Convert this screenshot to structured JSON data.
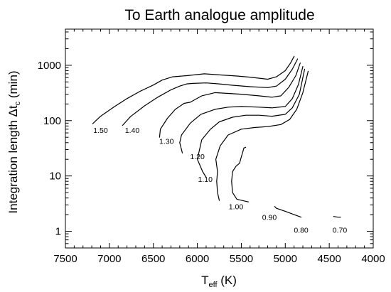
{
  "chart_data": {
    "type": "line",
    "title": "To Earth analogue amplitude",
    "xlabel": "T",
    "xlabel_sub": "eff",
    "xlabel_unit": "(K)",
    "ylabel": "Integration length Δt",
    "ylabel_sub": "c",
    "ylabel_unit": "(min)",
    "x_reversed": true,
    "xlim": [
      7500,
      4000
    ],
    "y_log": true,
    "ylim": [
      0.5,
      4500
    ],
    "x_ticks": [
      7500,
      7000,
      6500,
      6000,
      5500,
      5000,
      4500,
      4000
    ],
    "x_tick_labels": [
      "7500",
      "7000",
      "6500",
      "6000",
      "5500",
      "5000",
      "4500",
      "4000"
    ],
    "y_ticks": [
      1,
      10,
      100,
      1000
    ],
    "y_tick_labels": [
      "1",
      "10",
      "100",
      "1000"
    ],
    "grid": false,
    "legend": "none",
    "series": [
      {
        "label": "1.50",
        "label_at": [
          7100,
          60
        ],
        "points": [
          [
            7190,
            88
          ],
          [
            7100,
            120
          ],
          [
            6950,
            175
          ],
          [
            6800,
            250
          ],
          [
            6650,
            340
          ],
          [
            6500,
            440
          ],
          [
            6400,
            540
          ],
          [
            6280,
            620
          ],
          [
            6120,
            650
          ],
          [
            5920,
            700
          ],
          [
            5750,
            670
          ],
          [
            5550,
            640
          ],
          [
            5400,
            610
          ],
          [
            5200,
            560
          ],
          [
            5100,
            620
          ],
          [
            5000,
            800
          ],
          [
            4940,
            1100
          ],
          [
            4900,
            1450
          ]
        ]
      },
      {
        "label": "1.40",
        "label_at": [
          6740,
          60
        ],
        "points": [
          [
            6850,
            82
          ],
          [
            6760,
            118
          ],
          [
            6600,
            185
          ],
          [
            6450,
            265
          ],
          [
            6300,
            360
          ],
          [
            6200,
            420
          ],
          [
            6120,
            460
          ],
          [
            6050,
            470
          ],
          [
            5900,
            480
          ],
          [
            5750,
            460
          ],
          [
            5600,
            435
          ],
          [
            5400,
            410
          ],
          [
            5200,
            395
          ],
          [
            5100,
            420
          ],
          [
            5000,
            560
          ],
          [
            4920,
            850
          ],
          [
            4860,
            1300
          ]
        ]
      },
      {
        "label": "1.30",
        "label_at": [
          6350,
          38
        ],
        "points": [
          [
            6430,
            50
          ],
          [
            6420,
            70
          ],
          [
            6340,
            110
          ],
          [
            6250,
            160
          ],
          [
            6150,
            205
          ],
          [
            6080,
            215
          ],
          [
            5950,
            280
          ],
          [
            5800,
            320
          ],
          [
            5650,
            310
          ],
          [
            5500,
            300
          ],
          [
            5300,
            280
          ],
          [
            5150,
            265
          ],
          [
            5050,
            280
          ],
          [
            4960,
            400
          ],
          [
            4880,
            650
          ],
          [
            4830,
            1100
          ]
        ]
      },
      {
        "label": "1.20",
        "label_at": [
          6000,
          20
        ],
        "points": [
          [
            6170,
            26
          ],
          [
            6200,
            40
          ],
          [
            6180,
            55
          ],
          [
            6080,
            90
          ],
          [
            5960,
            130
          ],
          [
            5800,
            160
          ],
          [
            5650,
            175
          ],
          [
            5500,
            180
          ],
          [
            5300,
            175
          ],
          [
            5150,
            170
          ],
          [
            5000,
            180
          ],
          [
            4920,
            250
          ],
          [
            4850,
            450
          ],
          [
            4800,
            950
          ]
        ]
      },
      {
        "label": "1.10",
        "label_at": [
          5910,
          7.8
        ],
        "points": [
          [
            5900,
            9.5
          ],
          [
            5940,
            12
          ],
          [
            6000,
            20
          ],
          [
            5950,
            45
          ],
          [
            5850,
            70
          ],
          [
            5750,
            95
          ],
          [
            5600,
            115
          ],
          [
            5450,
            125
          ],
          [
            5300,
            125
          ],
          [
            5150,
            120
          ],
          [
            5000,
            130
          ],
          [
            4920,
            170
          ],
          [
            4840,
            300
          ],
          [
            4780,
            850
          ]
        ]
      },
      {
        "label": "1.00",
        "label_at": [
          5560,
          2.5
        ],
        "points": [
          [
            5750,
            3.6
          ],
          [
            5770,
            5
          ],
          [
            5780,
            8
          ],
          [
            5770,
            12
          ],
          [
            5790,
            20
          ],
          [
            5740,
            35
          ],
          [
            5650,
            55
          ],
          [
            5500,
            70
          ],
          [
            5350,
            75
          ],
          [
            5200,
            78
          ],
          [
            5050,
            85
          ],
          [
            4950,
            105
          ],
          [
            4870,
            160
          ],
          [
            4800,
            320
          ],
          [
            4740,
            780
          ]
        ]
      },
      {
        "label": "0.90",
        "label_at": [
          5180,
          1.6
        ],
        "points": [
          [
            5420,
            3.4
          ],
          [
            5550,
            3.8
          ],
          [
            5600,
            5
          ],
          [
            5610,
            8
          ],
          [
            5600,
            12
          ],
          [
            5560,
            15
          ],
          [
            5520,
            17
          ],
          [
            5500,
            22
          ],
          [
            5470,
            32
          ],
          [
            5450,
            33
          ]
        ]
      },
      {
        "label": "0.80",
        "label_at": [
          4820,
          0.95
        ],
        "points": [
          [
            5120,
            2.8
          ],
          [
            5100,
            2.6
          ],
          [
            5000,
            2.3
          ],
          [
            4900,
            2.0
          ],
          [
            4820,
            1.8
          ]
        ]
      },
      {
        "label": "0.70",
        "label_at": [
          4380,
          0.95
        ],
        "points": [
          [
            4450,
            1.85
          ],
          [
            4400,
            1.8
          ],
          [
            4370,
            1.8
          ]
        ]
      }
    ]
  }
}
